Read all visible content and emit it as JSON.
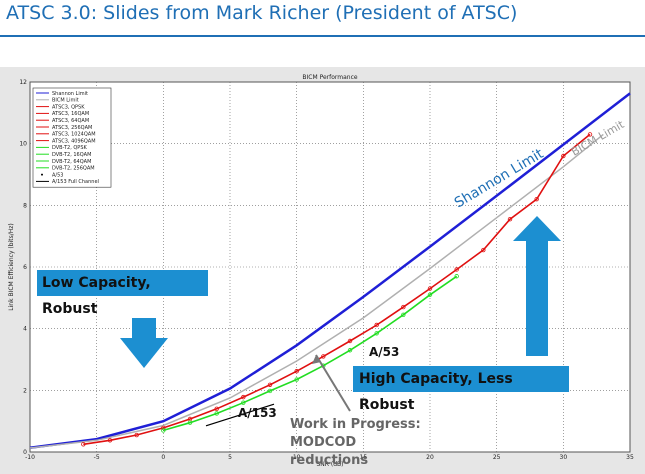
{
  "slide": {
    "title": "ATSC 3.0: Slides from Mark Richer (President of ATSC)"
  },
  "colors": {
    "title_blue": "#1f6fb5",
    "shannon": "#1f1fd6",
    "bicm": "#b0b0b0",
    "atsc3": "#e01010",
    "dvbt2": "#22dd22",
    "callout_box": "#1c8fd1",
    "arrow_blue": "#1c8fd1"
  },
  "annotations": {
    "low_capacity": "Low Capacity, Robust",
    "high_capacity": "High Capacity, Less Robust",
    "shannon_label": "Shannon Limit",
    "bicm_label": "BICM Limit",
    "a153_label": "A/153",
    "a53_label": "A/53",
    "wip_line1": "Work in Progress: MODCOD",
    "wip_line2": "reductions"
  },
  "chart_data": {
    "type": "line",
    "title": "BICM Performance",
    "xlabel": "SNR (dB)",
    "ylabel": "Link BICM Efficiency (bits/Hz)",
    "xlim": [
      -10,
      35
    ],
    "ylim": [
      0,
      12
    ],
    "xticks": [
      -10,
      -5,
      0,
      5,
      10,
      15,
      20,
      25,
      30,
      35
    ],
    "yticks": [
      0,
      2,
      4,
      6,
      8,
      10,
      12
    ],
    "grid": true,
    "legend_position": "top-left",
    "legend": [
      "Shannon Limit",
      "BICM Limit",
      "ATSC3, QPSK",
      "ATSC3, 16QAM",
      "ATSC3, 64QAM",
      "ATSC3, 256QAM",
      "ATSC3, 1024QAM",
      "ATSC3, 4096QAM",
      "DVB-T2, QPSK",
      "DVB-T2, 16QAM",
      "DVB-T2, 64QAM",
      "DVB-T2, 256QAM",
      "A/53",
      "A/153 Full Channel"
    ],
    "series": [
      {
        "name": "Shannon Limit",
        "x": [
          -10,
          -5,
          0,
          5,
          10,
          15,
          20,
          25,
          30,
          35
        ],
        "y": [
          0.14,
          0.42,
          1.0,
          2.06,
          3.46,
          5.03,
          6.66,
          8.31,
          9.97,
          11.63
        ]
      },
      {
        "name": "BICM Limit",
        "x": [
          -10,
          -5,
          0,
          5,
          10,
          15,
          20,
          25,
          30,
          33
        ],
        "y": [
          0.13,
          0.38,
          0.86,
          1.75,
          2.95,
          4.35,
          5.95,
          7.6,
          9.25,
          10.3
        ]
      },
      {
        "name": "ATSC3",
        "x": [
          -6,
          -4,
          -2,
          0,
          2,
          4,
          6,
          8,
          10,
          12,
          14,
          16,
          18,
          20,
          22,
          24,
          26,
          28,
          30,
          32
        ],
        "y": [
          0.25,
          0.38,
          0.55,
          0.78,
          1.07,
          1.4,
          1.78,
          2.18,
          2.62,
          3.1,
          3.6,
          4.12,
          4.7,
          5.3,
          5.92,
          6.55,
          7.55,
          8.2,
          9.6,
          10.3
        ]
      },
      {
        "name": "DVB-T2",
        "x": [
          0,
          2,
          4,
          6,
          8,
          10,
          12,
          14,
          16,
          18,
          20,
          22
        ],
        "y": [
          0.7,
          0.95,
          1.25,
          1.6,
          1.98,
          2.35,
          2.8,
          3.3,
          3.85,
          4.45,
          5.1,
          5.7
        ]
      }
    ],
    "points": [
      {
        "name": "A/53",
        "x": 15.2,
        "y": 2.1
      },
      {
        "name": "A/153 Full Channel",
        "x1": 3.2,
        "y1": 0.85,
        "x2": 8.3,
        "y2": 1.55
      }
    ]
  }
}
